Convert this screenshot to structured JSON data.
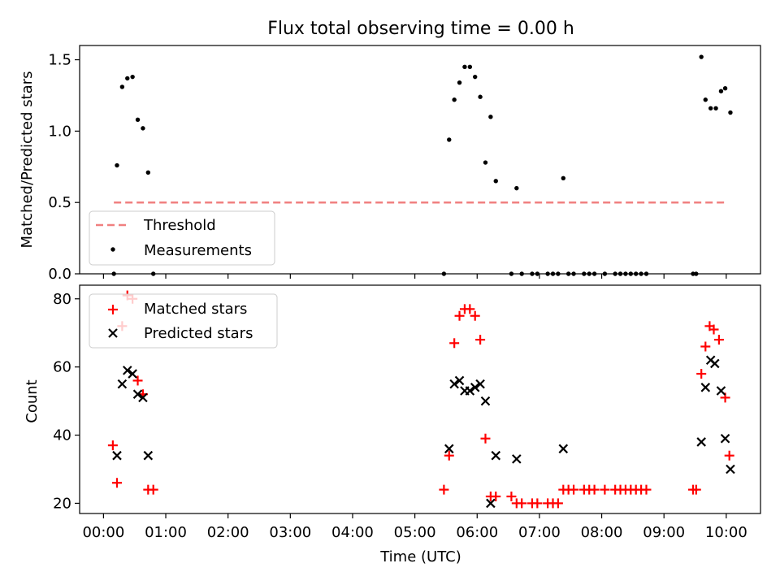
{
  "chart_data": [
    {
      "type": "scatter",
      "title": "Flux total observing time = 0.00 h",
      "ylabel": "Matched/Predicted stars",
      "xlabel": "",
      "xlim": [
        "23:37",
        "10:33"
      ],
      "ylim": [
        0,
        1.6
      ],
      "yticks": [
        0.0,
        0.5,
        1.0,
        1.5
      ],
      "ytick_labels": [
        "0.0",
        "0.5",
        "1.0",
        "1.5"
      ],
      "legend_position": "lower-left",
      "threshold": {
        "name": "Threshold",
        "y": 0.5,
        "x_range": [
          "00:10",
          "10:00"
        ],
        "color": "#f08080",
        "style": "dashed"
      },
      "series": [
        {
          "name": "Measurements",
          "color": "#000000",
          "marker": "dot",
          "points": [
            {
              "x": "00:10",
              "y": 0.0
            },
            {
              "x": "00:13",
              "y": 0.76
            },
            {
              "x": "00:18",
              "y": 1.31
            },
            {
              "x": "00:23",
              "y": 1.37
            },
            {
              "x": "00:28",
              "y": 1.38
            },
            {
              "x": "00:33",
              "y": 1.08
            },
            {
              "x": "00:38",
              "y": 1.02
            },
            {
              "x": "00:43",
              "y": 0.71
            },
            {
              "x": "00:48",
              "y": 0.0
            },
            {
              "x": "05:28",
              "y": 0.0
            },
            {
              "x": "05:33",
              "y": 0.94
            },
            {
              "x": "05:38",
              "y": 1.22
            },
            {
              "x": "05:43",
              "y": 1.34
            },
            {
              "x": "05:48",
              "y": 1.45
            },
            {
              "x": "05:53",
              "y": 1.45
            },
            {
              "x": "05:58",
              "y": 1.38
            },
            {
              "x": "06:03",
              "y": 1.24
            },
            {
              "x": "06:08",
              "y": 0.78
            },
            {
              "x": "06:13",
              "y": 1.1
            },
            {
              "x": "06:18",
              "y": 0.65
            },
            {
              "x": "06:33",
              "y": 0.0
            },
            {
              "x": "06:38",
              "y": 0.6
            },
            {
              "x": "06:43",
              "y": 0.0
            },
            {
              "x": "06:53",
              "y": 0.0
            },
            {
              "x": "06:58",
              "y": 0.0
            },
            {
              "x": "07:08",
              "y": 0.0
            },
            {
              "x": "07:13",
              "y": 0.0
            },
            {
              "x": "07:18",
              "y": 0.0
            },
            {
              "x": "07:23",
              "y": 0.67
            },
            {
              "x": "07:28",
              "y": 0.0
            },
            {
              "x": "07:33",
              "y": 0.0
            },
            {
              "x": "07:43",
              "y": 0.0
            },
            {
              "x": "07:48",
              "y": 0.0
            },
            {
              "x": "07:53",
              "y": 0.0
            },
            {
              "x": "08:03",
              "y": 0.0
            },
            {
              "x": "08:13",
              "y": 0.0
            },
            {
              "x": "08:18",
              "y": 0.0
            },
            {
              "x": "08:23",
              "y": 0.0
            },
            {
              "x": "08:28",
              "y": 0.0
            },
            {
              "x": "08:33",
              "y": 0.0
            },
            {
              "x": "08:38",
              "y": 0.0
            },
            {
              "x": "08:43",
              "y": 0.0
            },
            {
              "x": "09:28",
              "y": 0.0
            },
            {
              "x": "09:31",
              "y": 0.0
            },
            {
              "x": "09:36",
              "y": 1.52
            },
            {
              "x": "09:40",
              "y": 1.22
            },
            {
              "x": "09:45",
              "y": 1.16
            },
            {
              "x": "09:50",
              "y": 1.16
            },
            {
              "x": "09:55",
              "y": 1.28
            },
            {
              "x": "09:59",
              "y": 1.3
            },
            {
              "x": "10:04",
              "y": 1.13
            }
          ]
        }
      ]
    },
    {
      "type": "scatter",
      "title": "",
      "ylabel": "Count",
      "xlabel": "Time (UTC)",
      "xlim": [
        "23:37",
        "10:33"
      ],
      "ylim": [
        17,
        84
      ],
      "yticks": [
        20,
        40,
        60,
        80
      ],
      "ytick_labels": [
        "20",
        "40",
        "60",
        "80"
      ],
      "xticks": [
        "00:00",
        "01:00",
        "02:00",
        "03:00",
        "04:00",
        "05:00",
        "06:00",
        "07:00",
        "08:00",
        "09:00",
        "10:00"
      ],
      "xtick_labels": [
        "00:00",
        "01:00",
        "02:00",
        "03:00",
        "04:00",
        "05:00",
        "06:00",
        "07:00",
        "08:00",
        "09:00",
        "10:00"
      ],
      "legend_position": "upper-left",
      "series": [
        {
          "name": "Matched stars",
          "color": "#ff0000",
          "marker": "plus",
          "points": [
            {
              "x": "00:09",
              "y": 37
            },
            {
              "x": "00:13",
              "y": 26
            },
            {
              "x": "00:18",
              "y": 72
            },
            {
              "x": "00:23",
              "y": 81
            },
            {
              "x": "00:28",
              "y": 80
            },
            {
              "x": "00:33",
              "y": 56
            },
            {
              "x": "00:38",
              "y": 52
            },
            {
              "x": "00:43",
              "y": 24
            },
            {
              "x": "00:48",
              "y": 24
            },
            {
              "x": "05:28",
              "y": 24
            },
            {
              "x": "05:33",
              "y": 34
            },
            {
              "x": "05:38",
              "y": 67
            },
            {
              "x": "05:43",
              "y": 75
            },
            {
              "x": "05:48",
              "y": 77
            },
            {
              "x": "05:53",
              "y": 77
            },
            {
              "x": "05:58",
              "y": 75
            },
            {
              "x": "06:03",
              "y": 68
            },
            {
              "x": "06:08",
              "y": 39
            },
            {
              "x": "06:13",
              "y": 22
            },
            {
              "x": "06:18",
              "y": 22
            },
            {
              "x": "06:33",
              "y": 22
            },
            {
              "x": "06:38",
              "y": 20
            },
            {
              "x": "06:43",
              "y": 20
            },
            {
              "x": "06:53",
              "y": 20
            },
            {
              "x": "06:58",
              "y": 20
            },
            {
              "x": "07:08",
              "y": 20
            },
            {
              "x": "07:13",
              "y": 20
            },
            {
              "x": "07:18",
              "y": 20
            },
            {
              "x": "07:23",
              "y": 24
            },
            {
              "x": "07:28",
              "y": 24
            },
            {
              "x": "07:33",
              "y": 24
            },
            {
              "x": "07:43",
              "y": 24
            },
            {
              "x": "07:48",
              "y": 24
            },
            {
              "x": "07:53",
              "y": 24
            },
            {
              "x": "08:03",
              "y": 24
            },
            {
              "x": "08:13",
              "y": 24
            },
            {
              "x": "08:18",
              "y": 24
            },
            {
              "x": "08:23",
              "y": 24
            },
            {
              "x": "08:28",
              "y": 24
            },
            {
              "x": "08:33",
              "y": 24
            },
            {
              "x": "08:38",
              "y": 24
            },
            {
              "x": "08:43",
              "y": 24
            },
            {
              "x": "09:28",
              "y": 24
            },
            {
              "x": "09:31",
              "y": 24
            },
            {
              "x": "09:36",
              "y": 58
            },
            {
              "x": "09:40",
              "y": 66
            },
            {
              "x": "09:44",
              "y": 72
            },
            {
              "x": "09:48",
              "y": 71
            },
            {
              "x": "09:53",
              "y": 68
            },
            {
              "x": "09:59",
              "y": 51
            },
            {
              "x": "10:03",
              "y": 34
            }
          ]
        },
        {
          "name": "Predicted stars",
          "color": "#000000",
          "marker": "x",
          "points": [
            {
              "x": "00:13",
              "y": 34
            },
            {
              "x": "00:18",
              "y": 55
            },
            {
              "x": "00:23",
              "y": 59
            },
            {
              "x": "00:28",
              "y": 58
            },
            {
              "x": "00:33",
              "y": 52
            },
            {
              "x": "00:38",
              "y": 51
            },
            {
              "x": "00:43",
              "y": 34
            },
            {
              "x": "05:33",
              "y": 36
            },
            {
              "x": "05:38",
              "y": 55
            },
            {
              "x": "05:43",
              "y": 56
            },
            {
              "x": "05:48",
              "y": 53
            },
            {
              "x": "05:53",
              "y": 53
            },
            {
              "x": "05:58",
              "y": 54
            },
            {
              "x": "06:03",
              "y": 55
            },
            {
              "x": "06:08",
              "y": 50
            },
            {
              "x": "06:13",
              "y": 20
            },
            {
              "x": "06:18",
              "y": 34
            },
            {
              "x": "06:38",
              "y": 33
            },
            {
              "x": "07:23",
              "y": 36
            },
            {
              "x": "09:36",
              "y": 38
            },
            {
              "x": "09:40",
              "y": 54
            },
            {
              "x": "09:45",
              "y": 62
            },
            {
              "x": "09:49",
              "y": 61
            },
            {
              "x": "09:55",
              "y": 53
            },
            {
              "x": "09:59",
              "y": 39
            },
            {
              "x": "10:04",
              "y": 30
            }
          ]
        }
      ]
    }
  ]
}
